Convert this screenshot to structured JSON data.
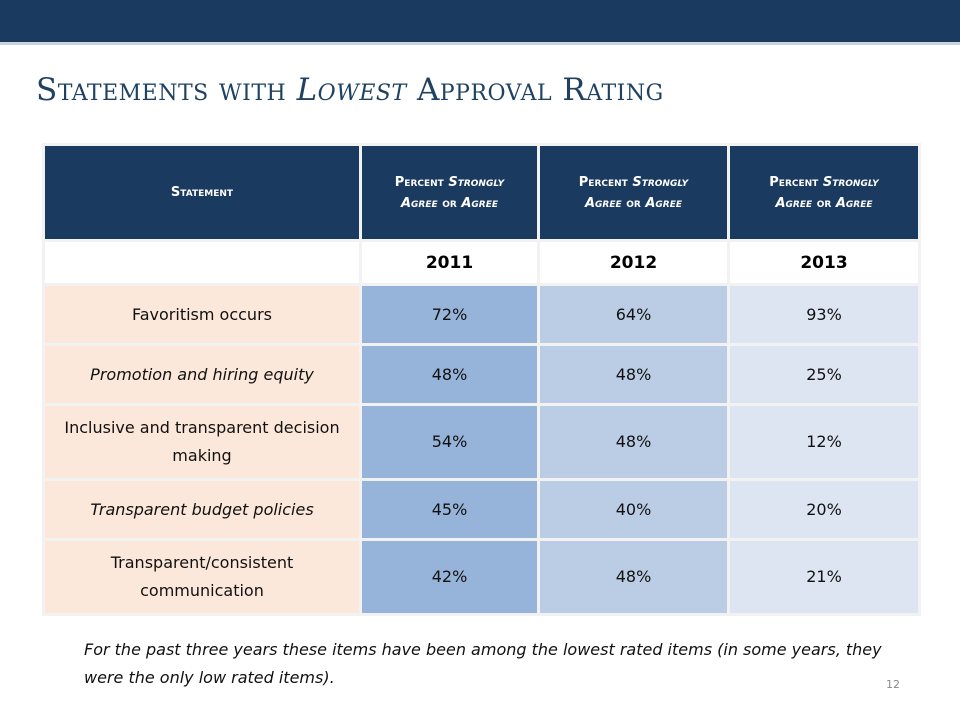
{
  "slide": {
    "title": {
      "prefix": "Statements with ",
      "emphasis": "Lowest",
      "suffix": " Approval Rating"
    },
    "footnote": "For the past three years these items have been among the lowest rated items (in some years, they were the only low rated items).",
    "page_number": "12"
  },
  "table": {
    "headers": [
      {
        "plain": "Statement",
        "italic": ""
      },
      {
        "line1_plain": "Percent ",
        "line1_italic": "Strongly",
        "line2_italic_a": "Agree",
        "line2_plain": " or ",
        "line2_italic_b": "Agree"
      },
      {
        "line1_plain": "Percent ",
        "line1_italic": "Strongly",
        "line2_italic_a": "Agree",
        "line2_plain": " or ",
        "line2_italic_b": "Agree"
      },
      {
        "line1_plain": "Percent ",
        "line1_italic": "Strongly",
        "line2_italic_a": "Agree",
        "line2_plain": " or ",
        "line2_italic_b": "Agree"
      }
    ],
    "years": [
      "",
      "2011",
      "2012",
      "2013"
    ],
    "rows": [
      {
        "statement": "Favoritism occurs",
        "v2011": "72%",
        "v2012": "64%",
        "v2013": "93%"
      },
      {
        "statement": "Promotion and hiring equity",
        "v2011": "48%",
        "v2012": "48%",
        "v2013": "25%"
      },
      {
        "statement": "Inclusive and transparent decision making",
        "v2011": "54%",
        "v2012": "48%",
        "v2013": "12%"
      },
      {
        "statement": "Transparent budget policies",
        "v2011": "45%",
        "v2012": "40%",
        "v2013": "20%"
      },
      {
        "statement": "Transparent/consistent communication",
        "v2011": "42%",
        "v2012": "48%",
        "v2013": "21%"
      }
    ]
  },
  "colors": {
    "header_navy": "#1b3a60",
    "title_blue": "#1f4262",
    "statement_cell": "#fce8db",
    "col_2011": "#96b4d9",
    "col_2012": "#bacde5",
    "col_2013": "#dce5f1"
  }
}
